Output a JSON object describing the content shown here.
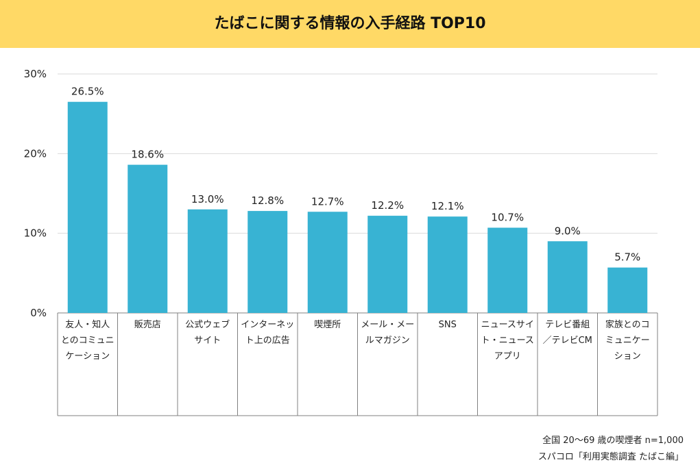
{
  "header": {
    "title": "たばこに関する情報の入手経路 TOP10"
  },
  "colors": {
    "header_bg": "#FFD966",
    "bar": "#38B3D3",
    "grid": "#d9d9d9",
    "table_border": "#808080"
  },
  "chart_data": {
    "type": "bar",
    "title": "たばこに関する情報の入手経路 TOP10",
    "categories": [
      [
        "友人・知人",
        "とのコミュニ",
        "ケーション"
      ],
      [
        "販売店"
      ],
      [
        "公式ウェブ",
        "サイト"
      ],
      [
        "インターネッ",
        "ト上の広告"
      ],
      [
        "喫煙所"
      ],
      [
        "メール・メー",
        "ルマガジン"
      ],
      [
        "SNS"
      ],
      [
        "ニュースサイ",
        "ト・ニュース",
        "アプリ"
      ],
      [
        "テレビ番組",
        "／テレビCM"
      ],
      [
        "家族とのコ",
        "ミュニケー",
        "ション"
      ]
    ],
    "values": [
      26.5,
      18.6,
      13.0,
      12.8,
      12.7,
      12.2,
      12.1,
      10.7,
      9.0,
      5.7
    ],
    "value_labels": [
      "26.5%",
      "18.6%",
      "13.0%",
      "12.8%",
      "12.7%",
      "12.2%",
      "12.1%",
      "10.7%",
      "9.0%",
      "5.7%"
    ],
    "yticks": [
      0,
      10,
      20,
      30
    ],
    "ytick_labels": [
      "0%",
      "10%",
      "20%",
      "30%"
    ],
    "ylim": [
      0,
      30
    ],
    "grid": true
  },
  "footnotes": {
    "line1": "全国 20〜69 歳の喫煙者 n=1,000",
    "line2": "スパコロ「利用実態調査 たばこ編」"
  }
}
